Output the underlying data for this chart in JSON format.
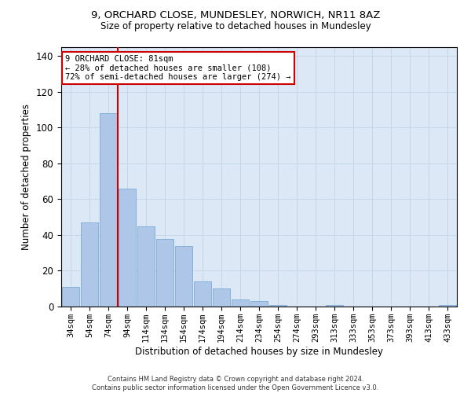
{
  "title1": "9, ORCHARD CLOSE, MUNDESLEY, NORWICH, NR11 8AZ",
  "title2": "Size of property relative to detached houses in Mundesley",
  "xlabel": "Distribution of detached houses by size in Mundesley",
  "ylabel": "Number of detached properties",
  "categories": [
    "34sqm",
    "54sqm",
    "74sqm",
    "94sqm",
    "114sqm",
    "134sqm",
    "154sqm",
    "174sqm",
    "194sqm",
    "214sqm",
    "234sqm",
    "254sqm",
    "274sqm",
    "293sqm",
    "313sqm",
    "333sqm",
    "353sqm",
    "373sqm",
    "393sqm",
    "413sqm",
    "433sqm"
  ],
  "values": [
    11,
    47,
    108,
    66,
    45,
    38,
    34,
    14,
    10,
    4,
    3,
    1,
    0,
    0,
    1,
    0,
    0,
    0,
    0,
    0,
    1
  ],
  "bar_color": "#aec6e8",
  "bar_edge_color": "#7baad4",
  "vline_x": 2.5,
  "vline_color": "#cc0000",
  "annotation_text": "9 ORCHARD CLOSE: 81sqm\n← 28% of detached houses are smaller (108)\n72% of semi-detached houses are larger (274) →",
  "annotation_box_color": "#ffffff",
  "annotation_box_edge": "#cc0000",
  "ylim": [
    0,
    145
  ],
  "yticks": [
    0,
    20,
    40,
    60,
    80,
    100,
    120,
    140
  ],
  "grid_color": "#c8d8e8",
  "background_color": "#dce8f5",
  "footer1": "Contains HM Land Registry data © Crown copyright and database right 2024.",
  "footer2": "Contains public sector information licensed under the Open Government Licence v3.0."
}
